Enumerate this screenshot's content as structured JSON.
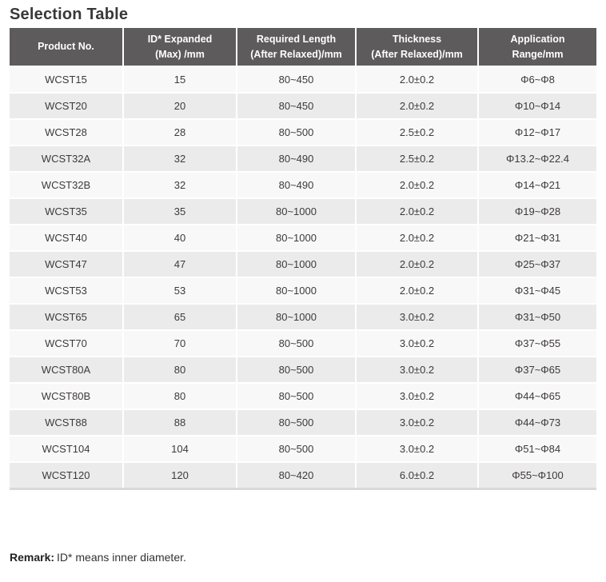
{
  "title": "Selection Table",
  "table": {
    "headers": [
      {
        "line1": "Product No.",
        "line2": ""
      },
      {
        "line1": "ID* Expanded",
        "line2": "(Max) /mm"
      },
      {
        "line1": "Required Length",
        "line2": "(After Relaxed)/mm"
      },
      {
        "line1": "Thickness",
        "line2": "(After Relaxed)/mm"
      },
      {
        "line1": "Application",
        "line2": "Range/mm"
      }
    ],
    "rows": [
      [
        "WCST15",
        "15",
        "80~450",
        "2.0±0.2",
        "Φ6~Φ8"
      ],
      [
        "WCST20",
        "20",
        "80~450",
        "2.0±0.2",
        "Φ10~Φ14"
      ],
      [
        "WCST28",
        "28",
        "80~500",
        "2.5±0.2",
        "Φ12~Φ17"
      ],
      [
        "WCST32A",
        "32",
        "80~490",
        "2.5±0.2",
        "Φ13.2~Φ22.4"
      ],
      [
        "WCST32B",
        "32",
        "80~490",
        "2.0±0.2",
        "Φ14~Φ21"
      ],
      [
        "WCST35",
        "35",
        "80~1000",
        "2.0±0.2",
        "Φ19~Φ28"
      ],
      [
        "WCST40",
        "40",
        "80~1000",
        "2.0±0.2",
        "Φ21~Φ31"
      ],
      [
        "WCST47",
        "47",
        "80~1000",
        "2.0±0.2",
        "Φ25~Φ37"
      ],
      [
        "WCST53",
        "53",
        "80~1000",
        "2.0±0.2",
        "Φ31~Φ45"
      ],
      [
        "WCST65",
        "65",
        "80~1000",
        "3.0±0.2",
        "Φ31~Φ50"
      ],
      [
        "WCST70",
        "70",
        "80~500",
        "3.0±0.2",
        "Φ37~Φ55"
      ],
      [
        "WCST80A",
        "80",
        "80~500",
        "3.0±0.2",
        "Φ37~Φ65"
      ],
      [
        "WCST80B",
        "80",
        "80~500",
        "3.0±0.2",
        "Φ44~Φ65"
      ],
      [
        "WCST88",
        "88",
        "80~500",
        "3.0±0.2",
        "Φ44~Φ73"
      ],
      [
        "WCST104",
        "104",
        "80~500",
        "3.0±0.2",
        "Φ51~Φ84"
      ],
      [
        "WCST120",
        "120",
        "80~420",
        "6.0±0.2",
        "Φ55~Φ100"
      ]
    ]
  },
  "remark": {
    "label": "Remark:",
    "text": "ID* means inner diameter."
  },
  "colors": {
    "header_bg": "#5d5b5b",
    "header_text": "#ffffff",
    "row_odd_bg": "#f8f8f8",
    "row_even_bg": "#ebebeb",
    "body_text": "#3e3a39",
    "title_text": "#383838",
    "table_bottom_border": "#d9d9d9"
  }
}
